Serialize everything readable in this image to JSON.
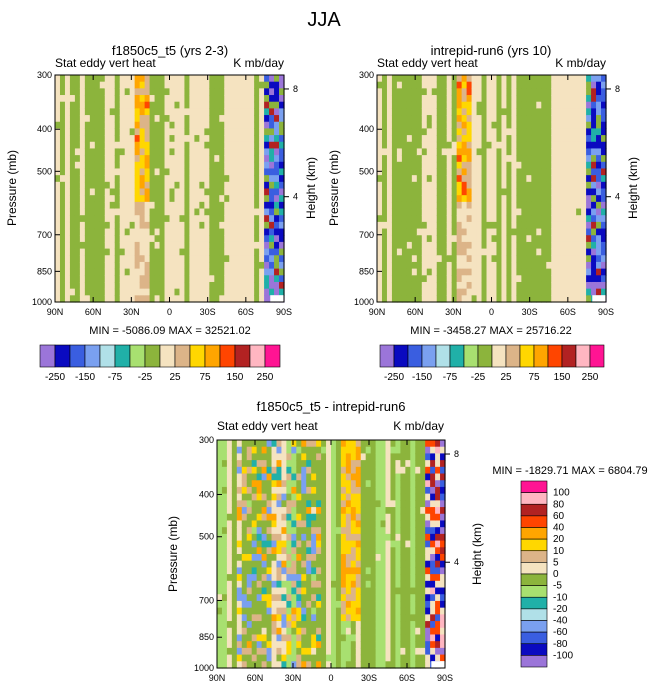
{
  "page_title": "JJA",
  "colors": {
    "abs": [
      "#9b75d9",
      "#0a0ac0",
      "#3a5ee0",
      "#7aa0f0",
      "#b0e0e8",
      "#20b0a8",
      "#a8e070",
      "#8cb43c",
      "#f5e3c0",
      "#dcb488",
      "#ffd700",
      "#ffa500",
      "#ff4500",
      "#b22222",
      "#ffb6c1",
      "#ff1493"
    ],
    "diff": [
      "#9b75d9",
      "#0a0ac0",
      "#3a5ee0",
      "#7aa0f0",
      "#b0e0e8",
      "#20b0a8",
      "#a8e070",
      "#8cb43c",
      "#f5e3c0",
      "#dcb488",
      "#ffd700",
      "#ffa500",
      "#ff4500",
      "#b22222",
      "#ffb6c1",
      "#ff1493"
    ]
  },
  "chart_data": [
    {
      "type": "heatmap",
      "title": "f1850c5_t5 (yrs 2-3)",
      "left_label": "Stat eddy vert heat",
      "right_label": "K mb/day",
      "ylabel": "Pressure (mb)",
      "y2label": "Height (km)",
      "x_ticks": [
        "90N",
        "60N",
        "30N",
        "0",
        "30S",
        "60S",
        "90S"
      ],
      "y_ticks": [
        "300",
        "400",
        "500",
        "700",
        "850",
        "1000"
      ],
      "y2_ticks": [
        "8",
        "4"
      ],
      "stats": "MIN = -5086.09   MAX = 32521.02"
    },
    {
      "type": "heatmap",
      "title": "intrepid-run6 (yrs 10)",
      "left_label": "Stat eddy vert heat",
      "right_label": "K mb/day",
      "ylabel": "Pressure (mb)",
      "y2label": "Height (km)",
      "x_ticks": [
        "90N",
        "60N",
        "30N",
        "0",
        "30S",
        "60S",
        "90S"
      ],
      "y_ticks": [
        "300",
        "400",
        "500",
        "700",
        "850",
        "1000"
      ],
      "y2_ticks": [
        "8",
        "4"
      ],
      "stats": "MIN = -3458.27   MAX = 25716.22"
    },
    {
      "type": "heatmap",
      "title": "f1850c5_t5 - intrepid-run6",
      "left_label": "Stat eddy vert heat",
      "right_label": "K mb/day",
      "ylabel": "Pressure (mb)",
      "y2label": "Height (km)",
      "x_ticks": [
        "90N",
        "60N",
        "30N",
        "0",
        "30S",
        "60S",
        "90S"
      ],
      "y_ticks": [
        "300",
        "400",
        "500",
        "700",
        "850",
        "1000"
      ],
      "y2_ticks": [
        "8",
        "4"
      ],
      "stats": "MIN = -1829.71   MAX = 6804.79"
    }
  ],
  "legend_abs": {
    "labels": [
      "-250",
      "-150",
      "-75",
      "-25",
      "25",
      "75",
      "150",
      "250"
    ]
  },
  "legend_diff": {
    "labels": [
      "100",
      "80",
      "60",
      "40",
      "20",
      "10",
      "5",
      "0",
      "-5",
      "-10",
      "-20",
      "-40",
      "-60",
      "-80",
      "-100"
    ]
  }
}
